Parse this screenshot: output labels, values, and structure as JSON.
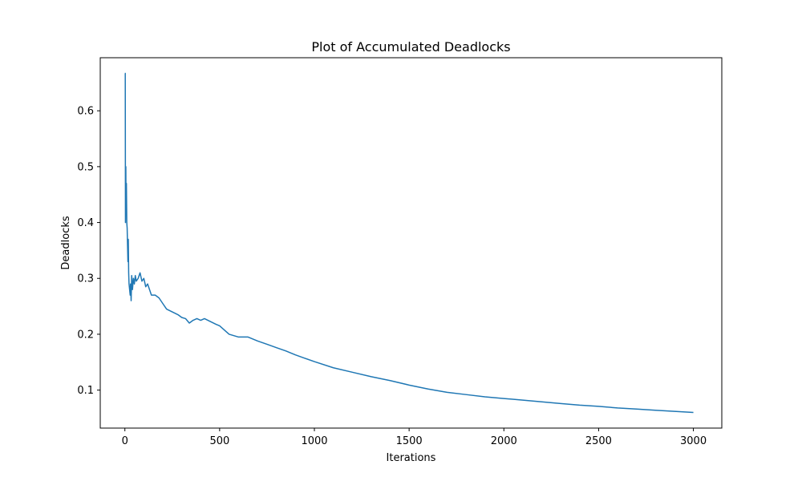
{
  "chart_data": {
    "type": "line",
    "title": "Plot of Accumulated Deadlocks",
    "xlabel": "Iterations",
    "ylabel": "Deadlocks",
    "xlim": [
      -130,
      3150
    ],
    "ylim": [
      0.032,
      0.695
    ],
    "xticks": [
      0,
      500,
      1000,
      1500,
      2000,
      2500,
      3000
    ],
    "xtick_labels": [
      "0",
      "500",
      "1000",
      "1500",
      "2000",
      "2500",
      "3000"
    ],
    "yticks": [
      0.1,
      0.2,
      0.3,
      0.4,
      0.5,
      0.6
    ],
    "ytick_labels": [
      "0.1",
      "0.2",
      "0.3",
      "0.4",
      "0.5",
      "0.6"
    ],
    "grid": false,
    "series": [
      {
        "color": "#1f77b4",
        "x": [
          0,
          2,
          3,
          5,
          6,
          8,
          10,
          12,
          14,
          16,
          18,
          20,
          22,
          25,
          28,
          30,
          33,
          36,
          40,
          45,
          50,
          55,
          60,
          70,
          80,
          90,
          100,
          110,
          120,
          140,
          160,
          180,
          200,
          220,
          250,
          280,
          300,
          320,
          340,
          360,
          380,
          400,
          420,
          450,
          480,
          500,
          550,
          600,
          650,
          700,
          750,
          800,
          850,
          900,
          950,
          1000,
          1100,
          1200,
          1300,
          1400,
          1500,
          1600,
          1700,
          1800,
          1900,
          2000,
          2100,
          2200,
          2300,
          2400,
          2500,
          2600,
          2700,
          2800,
          2900,
          3000
        ],
        "y": [
          0.667,
          0.667,
          0.4,
          0.5,
          0.43,
          0.47,
          0.4,
          0.39,
          0.36,
          0.33,
          0.37,
          0.31,
          0.29,
          0.28,
          0.27,
          0.29,
          0.26,
          0.305,
          0.28,
          0.3,
          0.29,
          0.305,
          0.295,
          0.3,
          0.31,
          0.295,
          0.3,
          0.285,
          0.29,
          0.27,
          0.27,
          0.265,
          0.255,
          0.245,
          0.24,
          0.235,
          0.23,
          0.228,
          0.22,
          0.225,
          0.228,
          0.225,
          0.228,
          0.223,
          0.218,
          0.215,
          0.2,
          0.195,
          0.195,
          0.188,
          0.182,
          0.176,
          0.17,
          0.163,
          0.157,
          0.151,
          0.14,
          0.132,
          0.124,
          0.117,
          0.109,
          0.102,
          0.096,
          0.092,
          0.088,
          0.085,
          0.082,
          0.079,
          0.076,
          0.073,
          0.071,
          0.068,
          0.066,
          0.064,
          0.062,
          0.06
        ]
      }
    ]
  }
}
